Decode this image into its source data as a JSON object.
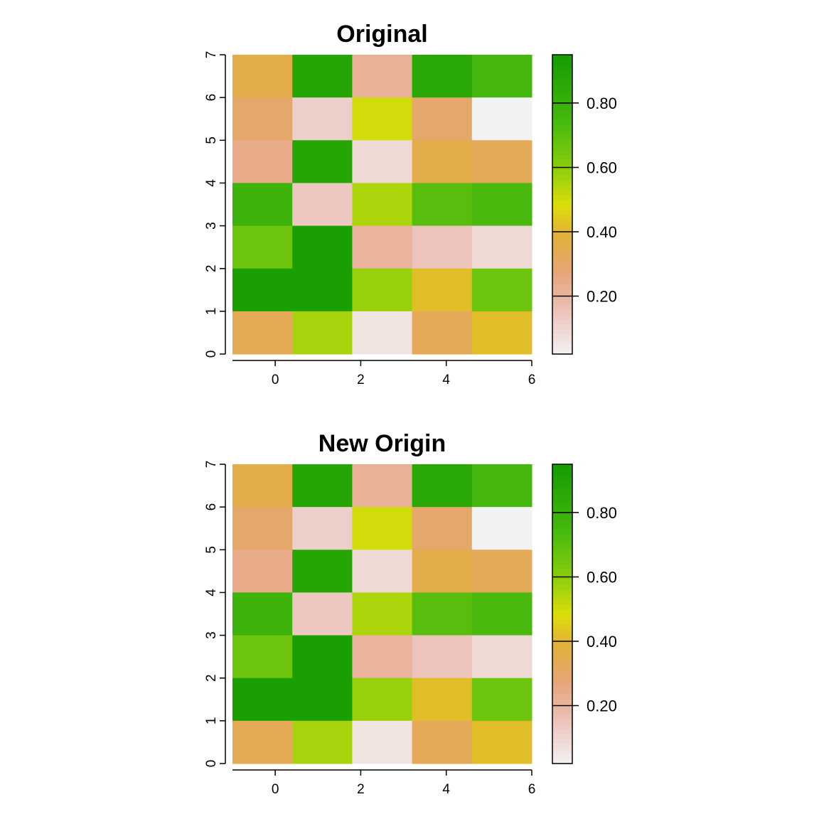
{
  "chart_data": [
    {
      "type": "heatmap",
      "title": "Original",
      "xlim": [
        -1,
        6
      ],
      "ylim": [
        0,
        7
      ],
      "x_ticks": [
        "0",
        "2",
        "4",
        "6"
      ],
      "y_ticks": [
        "0",
        "1",
        "2",
        "3",
        "4",
        "5",
        "6",
        "7"
      ],
      "cell_width": 1.4,
      "cell_height": 1,
      "values": [
        [
          0.36,
          0.88,
          0.22,
          0.86,
          0.75
        ],
        [
          0.3,
          0.12,
          0.5,
          0.3,
          0.02
        ],
        [
          0.24,
          0.88,
          0.09,
          0.36,
          0.33
        ],
        [
          0.78,
          0.14,
          0.55,
          0.71,
          0.74
        ],
        [
          0.66,
          0.93,
          0.21,
          0.15,
          0.09
        ],
        [
          0.93,
          0.93,
          0.58,
          0.42,
          0.66
        ],
        [
          0.34,
          0.56,
          0.06,
          0.33,
          0.42
        ]
      ],
      "legend": {
        "ticks": [
          "0.20",
          "0.40",
          "0.60",
          "0.80"
        ],
        "range": [
          0.02,
          0.95
        ]
      }
    },
    {
      "type": "heatmap",
      "title": "New Origin",
      "xlim": [
        -1,
        6
      ],
      "ylim": [
        0,
        7
      ],
      "x_ticks": [
        "0",
        "2",
        "4",
        "6"
      ],
      "y_ticks": [
        "0",
        "1",
        "2",
        "3",
        "4",
        "5",
        "6",
        "7"
      ],
      "cell_width": 1.4,
      "cell_height": 1,
      "values": [
        [
          0.36,
          0.88,
          0.22,
          0.86,
          0.75
        ],
        [
          0.3,
          0.12,
          0.5,
          0.3,
          0.02
        ],
        [
          0.24,
          0.88,
          0.09,
          0.36,
          0.33
        ],
        [
          0.78,
          0.14,
          0.55,
          0.71,
          0.74
        ],
        [
          0.66,
          0.93,
          0.21,
          0.15,
          0.09
        ],
        [
          0.93,
          0.93,
          0.58,
          0.42,
          0.66
        ],
        [
          0.34,
          0.56,
          0.06,
          0.33,
          0.42
        ]
      ],
      "legend": {
        "ticks": [
          "0.20",
          "0.40",
          "0.60",
          "0.80"
        ],
        "range": [
          0.02,
          0.95
        ]
      }
    }
  ]
}
